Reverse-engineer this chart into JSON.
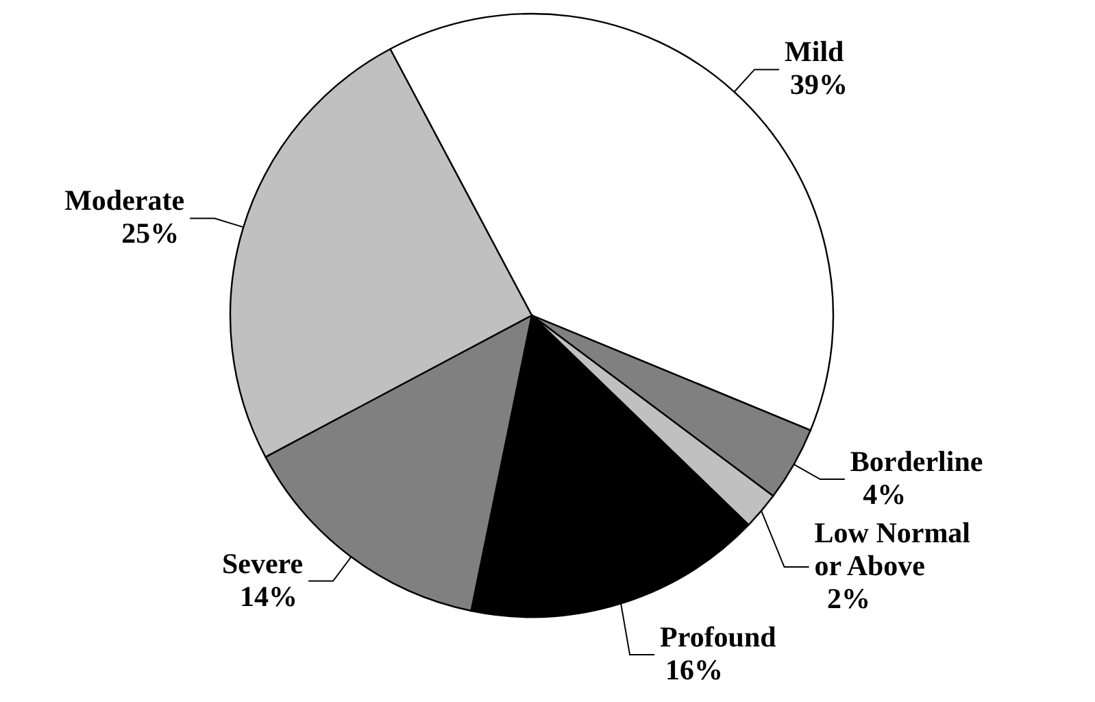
{
  "chart_data": {
    "type": "pie",
    "categories": [
      "Mild",
      "Borderline",
      "Low Normal or Above",
      "Profound",
      "Severe",
      "Moderate"
    ],
    "values": [
      39,
      4,
      2,
      16,
      14,
      25
    ],
    "colors": [
      "#ffffff",
      "#808080",
      "#c0c0c0",
      "#000000",
      "#808080",
      "#c0c0c0"
    ],
    "value_labels": [
      "39%",
      "4%",
      "2%",
      "16%",
      "14%",
      "25%"
    ]
  }
}
